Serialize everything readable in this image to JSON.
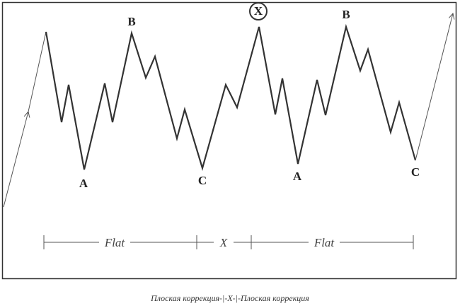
{
  "wave_labels": [
    "A",
    "B",
    "C",
    "X",
    "A",
    "B",
    "C"
  ],
  "segments": [
    "Flat",
    "X",
    "Flat"
  ],
  "caption": "Плоская коррекция-|-X-|-Плоская коррекция"
}
